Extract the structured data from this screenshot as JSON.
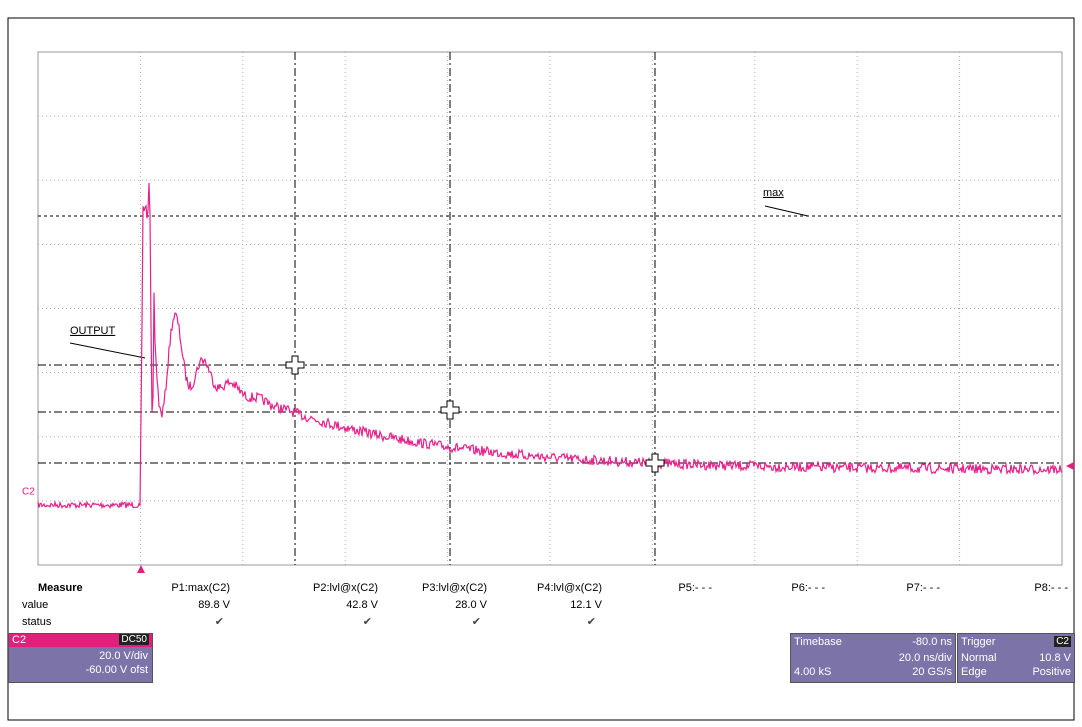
{
  "screen": {
    "labels": {
      "max": "max",
      "output": "OUTPUT",
      "channel": "C2"
    },
    "measure": {
      "title": "Measure",
      "row_value": "value",
      "row_status": "status",
      "params": [
        "P1:max(C2)",
        "P2:lvl@x(C2)",
        "P3:lvl@x(C2)",
        "P4:lvl@x(C2)",
        "P5:- - -",
        "P6:- - -",
        "P7:- - -",
        "P8:- - -"
      ],
      "values": [
        "89.8 V",
        "42.8 V",
        "28.0 V",
        "12.1 V"
      ],
      "status": [
        "✔",
        "✔",
        "✔",
        "✔"
      ]
    },
    "channel_box": {
      "name": "C2",
      "coupling": "DC50",
      "scale": "20.0 V/div",
      "offset": "-60.00 V ofst"
    },
    "timebase_box": {
      "title": "Timebase",
      "delay": "-80.0 ns",
      "scale": "20.0 ns/div",
      "samples": "4.00 kS",
      "rate": "20 GS/s"
    },
    "trigger_box": {
      "title": "Trigger",
      "source": "C2",
      "mode": "Normal",
      "level": "10.8 V",
      "type": "Edge",
      "slope": "Positive"
    }
  }
}
